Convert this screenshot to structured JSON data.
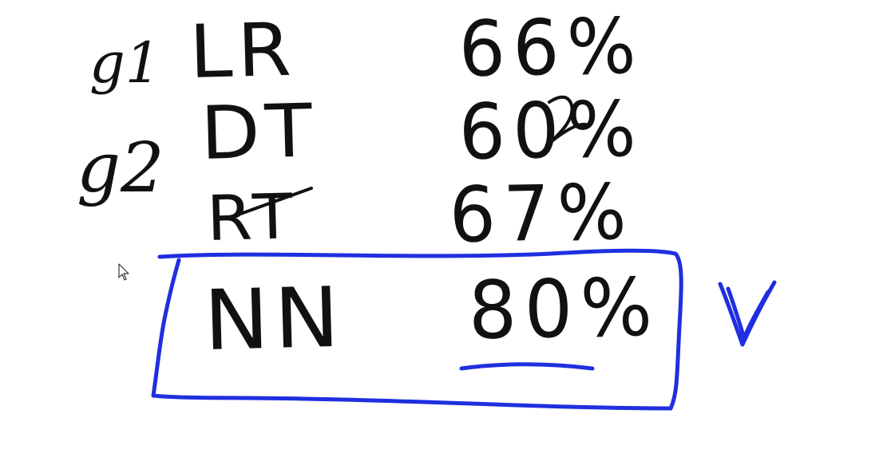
{
  "colors": {
    "ink": "#111111",
    "highlight": "#1f2fe0",
    "background": "#ffffff"
  },
  "row_labels": [
    "g1",
    "g2"
  ],
  "rows": [
    {
      "model": "LR",
      "score": "66%"
    },
    {
      "model": "DT",
      "score": "60%"
    },
    {
      "model": "RT",
      "score": "67%"
    },
    {
      "model": "NN",
      "score": "80%",
      "highlighted": true
    }
  ],
  "icons": {
    "check": "checkmark-icon",
    "cursor": "mouse-cursor-icon"
  }
}
